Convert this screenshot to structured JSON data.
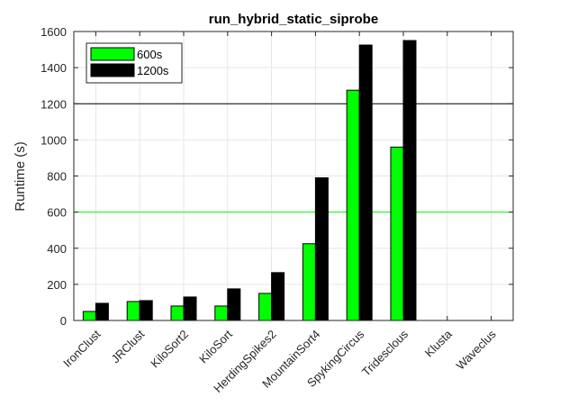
{
  "chart_data": {
    "type": "bar",
    "title": "run_hybrid_static_siprobe",
    "xlabel": "",
    "ylabel": "Runtime (s)",
    "ylim": [
      0,
      1600
    ],
    "yticks": [
      0,
      200,
      400,
      600,
      800,
      1000,
      1200,
      1400,
      1600
    ],
    "grid": true,
    "legend_position": "top-left",
    "categories": [
      "IronClust",
      "JRClust",
      "KiloSort2",
      "KiloSort",
      "HerdingSpikes2",
      "MountainSort4",
      "SpykingCircus",
      "Tridesclous",
      "Klusta",
      "Waveclus"
    ],
    "series": [
      {
        "name": "600s",
        "color": "#00ff00",
        "values": [
          50,
          105,
          80,
          80,
          150,
          425,
          1275,
          960,
          0,
          0
        ]
      },
      {
        "name": "1200s",
        "color": "#000000",
        "values": [
          95,
          110,
          130,
          175,
          265,
          790,
          1525,
          1550,
          0,
          0
        ]
      }
    ],
    "reference_lines": [
      {
        "value": 600,
        "color": "#00ff00"
      },
      {
        "value": 1200,
        "color": "#000000"
      }
    ]
  }
}
